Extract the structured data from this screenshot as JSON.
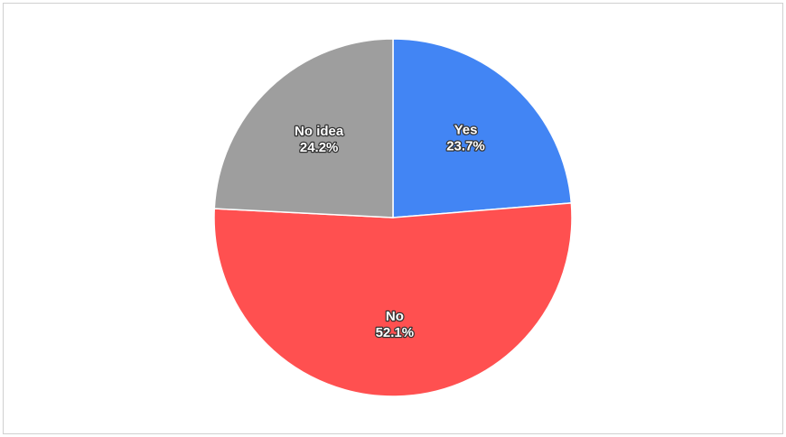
{
  "chart_data": {
    "type": "pie",
    "categories": [
      "Yes",
      "No",
      "No idea"
    ],
    "values": [
      23.7,
      52.1,
      24.2
    ],
    "value_labels": [
      "23.7%",
      "52.1%",
      "24.2%"
    ],
    "colors": [
      "#4285f4",
      "#ff5050",
      "#9e9e9e"
    ]
  }
}
